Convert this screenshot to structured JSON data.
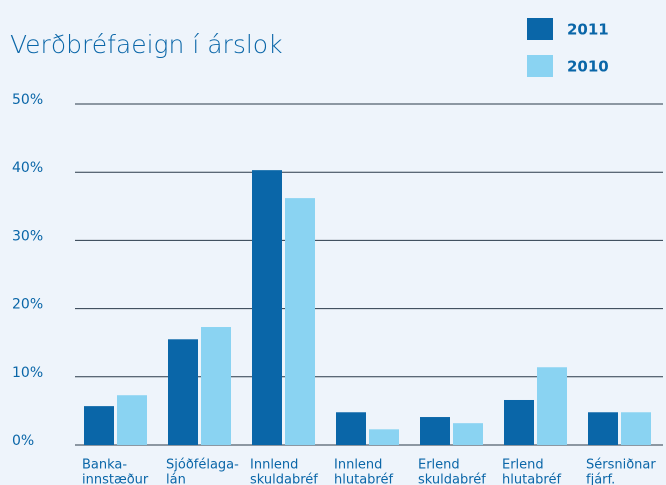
{
  "chart_data": {
    "type": "bar",
    "title": "Verðbréfaeign í árslok",
    "categories": [
      [
        "Banka-",
        "innstæður"
      ],
      [
        "Sjóðfélaga-",
        "lán"
      ],
      [
        "Innlend",
        "skuldabréf"
      ],
      [
        "Innlend",
        "hlutabréf"
      ],
      [
        "Erlend",
        "skuldabréf"
      ],
      [
        "Erlend",
        "hlutabréf"
      ],
      [
        "Sérsniðnar",
        "fjárf."
      ]
    ],
    "series": [
      {
        "name": "2011",
        "color": "#0a66a8",
        "values": [
          5.7,
          15.5,
          40.3,
          4.8,
          4.1,
          6.6,
          4.8
        ]
      },
      {
        "name": "2010",
        "color": "#8ad3f2",
        "values": [
          7.3,
          17.3,
          36.2,
          2.3,
          3.2,
          11.4,
          4.8
        ]
      }
    ],
    "ylim": [
      0,
      50
    ],
    "yticks": [
      {
        "value": 0,
        "label": "0%"
      },
      {
        "value": 10,
        "label": "10%"
      },
      {
        "value": 20,
        "label": "20%"
      },
      {
        "value": 30,
        "label": "30%"
      },
      {
        "value": 40,
        "label": "40%"
      },
      {
        "value": 50,
        "label": "50%"
      }
    ],
    "grid": true,
    "legend": "top-right"
  }
}
